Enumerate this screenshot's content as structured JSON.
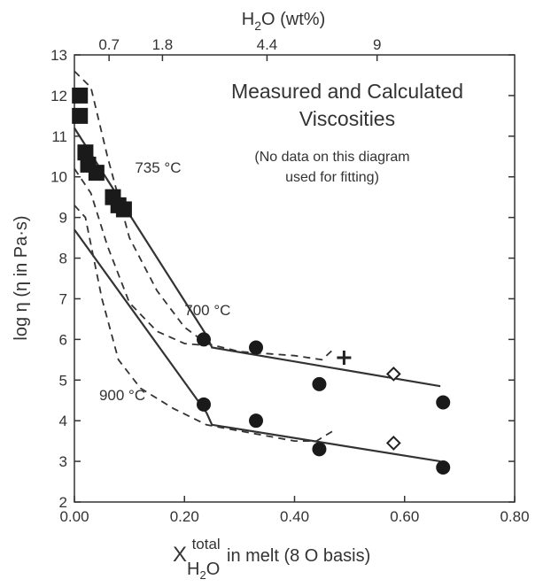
{
  "chart_data": {
    "type": "scatter",
    "title": "Measured and Calculated",
    "title_line2": "Viscosities",
    "note_line1": "(No data on this diagram",
    "note_line2": "used for fitting)",
    "xlabel": {
      "pre": "X",
      "sup": "total",
      "sub": "H",
      "sub2": "2",
      "sub3": "O",
      "rest": " in melt (8 O basis)"
    },
    "ylabel": "log η (η in Pa·s)",
    "top_axis_label": "H₂O (wt%)",
    "top_axis_label_parts": {
      "a": "H",
      "b": "2",
      "c": "O (wt%)"
    },
    "xlim": [
      0,
      0.8
    ],
    "ylim": [
      2,
      13
    ],
    "x_ticks": [
      0,
      0.2,
      0.4,
      0.6,
      0.8
    ],
    "x_tick_labels": [
      "0.00",
      "0.20",
      "0.40",
      "0.60",
      "0.80"
    ],
    "y_ticks": [
      2,
      3,
      4,
      5,
      6,
      7,
      8,
      9,
      10,
      11,
      12,
      13
    ],
    "y_tick_labels": [
      "2",
      "3",
      "4",
      "5",
      "6",
      "7",
      "8",
      "9",
      "10",
      "11",
      "12",
      "13"
    ],
    "top_ticks": [
      {
        "x": 0.063,
        "label": "0.7"
      },
      {
        "x": 0.16,
        "label": "1.8"
      },
      {
        "x": 0.35,
        "label": "4.4"
      },
      {
        "x": 0.55,
        "label": "9"
      }
    ],
    "temperature_labels": [
      {
        "text": "735 °C",
        "x": 0.11,
        "y": 10.1
      },
      {
        "text": "700 °C",
        "x": 0.2,
        "y": 6.6
      },
      {
        "text": "900 °C",
        "x": 0.045,
        "y": 4.5
      }
    ],
    "series": [
      {
        "marker": "square",
        "points": [
          [
            0.01,
            12.0
          ],
          [
            0.01,
            11.5
          ],
          [
            0.02,
            10.6
          ],
          [
            0.025,
            10.3
          ],
          [
            0.04,
            10.1
          ],
          [
            0.07,
            9.5
          ],
          [
            0.08,
            9.3
          ],
          [
            0.09,
            9.2
          ]
        ]
      },
      {
        "marker": "circle",
        "points": [
          [
            0.235,
            6.0
          ],
          [
            0.33,
            5.8
          ],
          [
            0.445,
            4.9
          ],
          [
            0.67,
            4.45
          ],
          [
            0.235,
            4.4
          ],
          [
            0.33,
            4.0
          ],
          [
            0.445,
            3.3
          ],
          [
            0.67,
            2.85
          ]
        ]
      },
      {
        "marker": "diamond",
        "points": [
          [
            0.58,
            5.15
          ],
          [
            0.58,
            3.45
          ]
        ]
      },
      {
        "marker": "plus",
        "points": [
          [
            0.49,
            5.55
          ]
        ]
      }
    ],
    "lines": [
      {
        "style": "solid",
        "points": [
          [
            0.0,
            11.2
          ],
          [
            0.24,
            6.1
          ],
          [
            0.25,
            5.8
          ],
          [
            0.665,
            4.85
          ]
        ]
      },
      {
        "style": "solid",
        "points": [
          [
            0.0,
            8.7
          ],
          [
            0.24,
            4.2
          ],
          [
            0.25,
            3.9
          ],
          [
            0.665,
            3.0
          ]
        ]
      },
      {
        "style": "dashed",
        "points": [
          [
            0.0,
            12.6
          ],
          [
            0.03,
            12.2
          ],
          [
            0.06,
            10.5
          ],
          [
            0.1,
            8.5
          ],
          [
            0.15,
            7.2
          ],
          [
            0.2,
            6.3
          ],
          [
            0.24,
            5.9
          ],
          [
            0.3,
            5.7
          ],
          [
            0.4,
            5.6
          ],
          [
            0.45,
            5.5
          ],
          [
            0.47,
            5.75
          ]
        ]
      },
      {
        "style": "dashed",
        "points": [
          [
            0.0,
            10.2
          ],
          [
            0.03,
            9.6
          ],
          [
            0.06,
            8.3
          ],
          [
            0.1,
            6.9
          ],
          [
            0.15,
            6.2
          ],
          [
            0.2,
            5.9
          ],
          [
            0.24,
            5.85
          ]
        ]
      },
      {
        "style": "dashed",
        "points": [
          [
            0.0,
            9.3
          ],
          [
            0.02,
            9.0
          ],
          [
            0.05,
            7.0
          ],
          [
            0.08,
            5.5
          ],
          [
            0.12,
            4.8
          ],
          [
            0.18,
            4.3
          ],
          [
            0.24,
            3.9
          ],
          [
            0.3,
            3.75
          ],
          [
            0.4,
            3.5
          ],
          [
            0.44,
            3.5
          ],
          [
            0.47,
            3.75
          ]
        ]
      }
    ],
    "grid": false,
    "legend": "none"
  }
}
